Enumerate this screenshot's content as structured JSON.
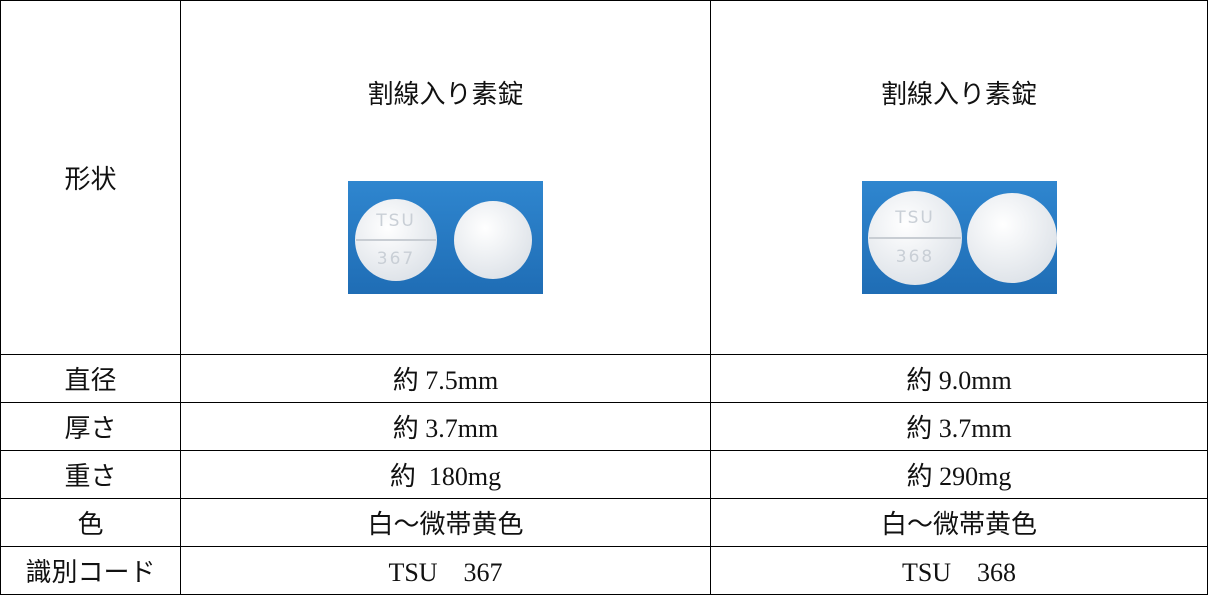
{
  "table": {
    "header": {
      "label": "形状",
      "columns": [
        {
          "title": "割線入り素錠",
          "imprint": [
            "TSU",
            "367"
          ]
        },
        {
          "title": "割線入り素錠",
          "imprint": [
            "TSU",
            "368"
          ]
        }
      ]
    },
    "rows": [
      [
        "直径",
        "約 7.5mm",
        "約 9.0mm"
      ],
      [
        "厚さ",
        "約 3.7mm",
        "約 3.7mm"
      ],
      [
        "重さ",
        "約  180mg",
        "約 290mg"
      ],
      [
        "色",
        "白～微帯黄色",
        "白～微帯黄色"
      ],
      [
        "識別コード",
        "TSU　367",
        "TSU　368"
      ]
    ]
  }
}
